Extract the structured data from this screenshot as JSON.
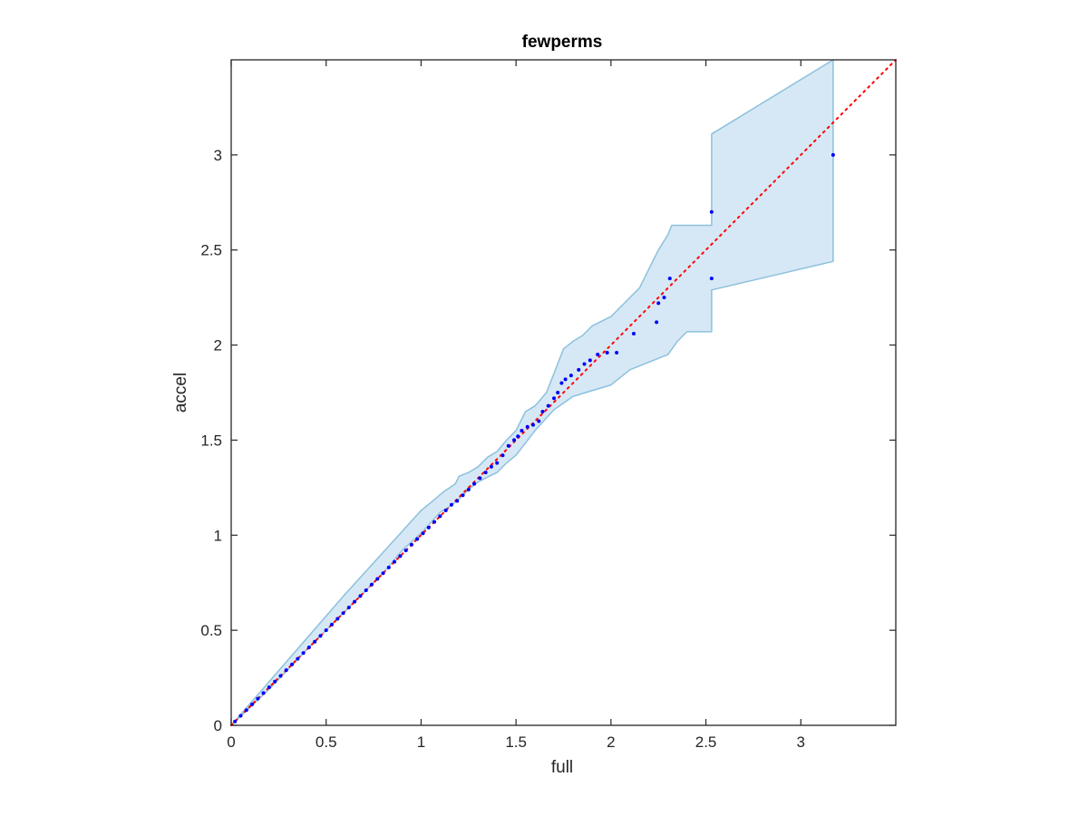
{
  "chart_data": {
    "type": "scatter",
    "title": "fewperms",
    "xlabel": "full",
    "ylabel": "accel",
    "xlim": [
      0,
      3.5
    ],
    "ylim": [
      0,
      3.5
    ],
    "xticks": [
      0,
      0.5,
      1,
      1.5,
      2,
      2.5,
      3
    ],
    "yticks": [
      0,
      0.5,
      1,
      1.5,
      2,
      2.5,
      3
    ],
    "xtick_labels": [
      "0",
      "0.5",
      "1",
      "1.5",
      "2",
      "2.5",
      "3"
    ],
    "ytick_labels": [
      "0",
      "0.5",
      "1",
      "1.5",
      "2",
      "2.5",
      "3"
    ],
    "grid": false,
    "box": true,
    "colors": {
      "points": "#0000ff",
      "reference_line": "#ff0000",
      "band_fill": "#d6e8f5",
      "band_edge": "#8cc0dd",
      "axes": "#262626"
    },
    "reference_line": {
      "style": "dotted",
      "x": [
        0,
        3.5
      ],
      "y": [
        0,
        3.5
      ]
    },
    "band": {
      "upper": [
        [
          0,
          0
        ],
        [
          0.2,
          0.23
        ],
        [
          0.4,
          0.46
        ],
        [
          0.6,
          0.69
        ],
        [
          0.8,
          0.91
        ],
        [
          0.9,
          1.02
        ],
        [
          1.0,
          1.13
        ],
        [
          1.05,
          1.17
        ],
        [
          1.12,
          1.23
        ],
        [
          1.18,
          1.27
        ],
        [
          1.2,
          1.31
        ],
        [
          1.25,
          1.33
        ],
        [
          1.3,
          1.36
        ],
        [
          1.35,
          1.41
        ],
        [
          1.4,
          1.44
        ],
        [
          1.45,
          1.5
        ],
        [
          1.5,
          1.55
        ],
        [
          1.55,
          1.65
        ],
        [
          1.6,
          1.68
        ],
        [
          1.66,
          1.75
        ],
        [
          1.7,
          1.85
        ],
        [
          1.75,
          1.98
        ],
        [
          1.8,
          2.02
        ],
        [
          1.85,
          2.05
        ],
        [
          1.9,
          2.1
        ],
        [
          2.0,
          2.15
        ],
        [
          2.1,
          2.25
        ],
        [
          2.15,
          2.3
        ],
        [
          2.2,
          2.4
        ],
        [
          2.25,
          2.5
        ],
        [
          2.3,
          2.58
        ],
        [
          2.32,
          2.63
        ],
        [
          2.53,
          2.63
        ],
        [
          2.53,
          3.11
        ],
        [
          3.17,
          3.5
        ]
      ],
      "lower": [
        [
          3.17,
          2.44
        ],
        [
          2.53,
          2.29
        ],
        [
          2.53,
          2.07
        ],
        [
          2.4,
          2.07
        ],
        [
          2.35,
          2.02
        ],
        [
          2.3,
          1.95
        ],
        [
          2.2,
          1.91
        ],
        [
          2.1,
          1.87
        ],
        [
          2.0,
          1.79
        ],
        [
          1.9,
          1.76
        ],
        [
          1.8,
          1.73
        ],
        [
          1.7,
          1.66
        ],
        [
          1.6,
          1.55
        ],
        [
          1.5,
          1.42
        ],
        [
          1.45,
          1.38
        ],
        [
          1.4,
          1.33
        ],
        [
          1.3,
          1.28
        ],
        [
          1.25,
          1.24
        ],
        [
          1.2,
          1.19
        ],
        [
          1.15,
          1.15
        ],
        [
          1.1,
          1.12
        ],
        [
          1.0,
          1.01
        ],
        [
          0.9,
          0.92
        ],
        [
          0.8,
          0.8
        ],
        [
          0.6,
          0.6
        ],
        [
          0.4,
          0.4
        ],
        [
          0.2,
          0.19
        ],
        [
          0,
          0
        ]
      ]
    },
    "series": [
      {
        "x": [
          0.02,
          0.05,
          0.08,
          0.11,
          0.14,
          0.17,
          0.2,
          0.23,
          0.26,
          0.29,
          0.32,
          0.35,
          0.38,
          0.41,
          0.44,
          0.47,
          0.5,
          0.53,
          0.56,
          0.59,
          0.62,
          0.65,
          0.68,
          0.71,
          0.74,
          0.77,
          0.8,
          0.83,
          0.86,
          0.89,
          0.92,
          0.95,
          0.98,
          1.01,
          1.04,
          1.07,
          1.1,
          1.13,
          1.16,
          1.19,
          1.22,
          1.25,
          1.28,
          1.31,
          1.34,
          1.37,
          1.4,
          1.43,
          1.46,
          1.49,
          1.51,
          1.53,
          1.56,
          1.59,
          1.62,
          1.64,
          1.67,
          1.7,
          1.72,
          1.74,
          1.76,
          1.79,
          1.83,
          1.86,
          1.89,
          1.93,
          1.98,
          2.03,
          2.12,
          2.24,
          2.25,
          2.28,
          2.31,
          2.53,
          2.53,
          3.17
        ],
        "y": [
          0.02,
          0.05,
          0.08,
          0.11,
          0.14,
          0.17,
          0.2,
          0.23,
          0.26,
          0.29,
          0.32,
          0.35,
          0.38,
          0.41,
          0.44,
          0.47,
          0.5,
          0.53,
          0.56,
          0.59,
          0.62,
          0.65,
          0.68,
          0.71,
          0.74,
          0.77,
          0.8,
          0.83,
          0.86,
          0.89,
          0.92,
          0.95,
          0.98,
          1.01,
          1.04,
          1.07,
          1.1,
          1.13,
          1.16,
          1.18,
          1.21,
          1.24,
          1.27,
          1.3,
          1.33,
          1.36,
          1.38,
          1.42,
          1.47,
          1.5,
          1.52,
          1.55,
          1.57,
          1.58,
          1.6,
          1.65,
          1.68,
          1.72,
          1.75,
          1.8,
          1.82,
          1.84,
          1.87,
          1.9,
          1.92,
          1.95,
          1.96,
          1.96,
          2.06,
          2.12,
          2.22,
          2.25,
          2.35,
          2.35,
          2.7,
          3.0
        ]
      }
    ]
  }
}
